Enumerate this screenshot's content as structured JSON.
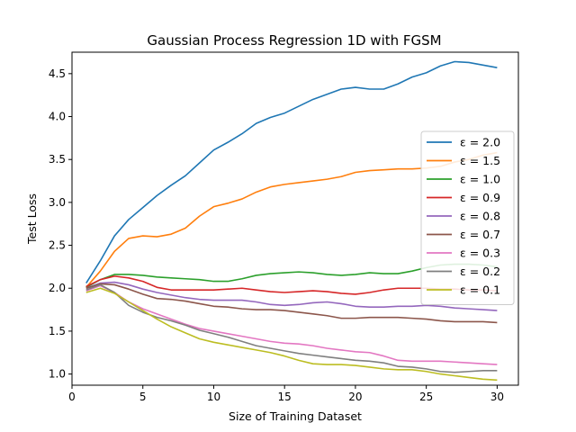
{
  "chart_data": {
    "type": "line",
    "title": "Gaussian Process Regression 1D with FGSM",
    "xlabel": "Size of Training Dataset",
    "ylabel": "Test Loss",
    "xlim": [
      0,
      31.5
    ],
    "ylim": [
      0.87,
      4.75
    ],
    "x_ticks": [
      "0",
      "5",
      "10",
      "15",
      "20",
      "25",
      "30"
    ],
    "y_ticks": [
      "1.0",
      "1.5",
      "2.0",
      "2.5",
      "3.0",
      "3.5",
      "4.0",
      "4.5"
    ],
    "grid": false,
    "legend_position": "center-right",
    "x": [
      1,
      2,
      3,
      4,
      5,
      6,
      7,
      8,
      9,
      10,
      11,
      12,
      13,
      14,
      15,
      16,
      17,
      18,
      19,
      20,
      21,
      22,
      23,
      24,
      25,
      26,
      27,
      28,
      29,
      30
    ],
    "series": [
      {
        "name": "ε = 2.0",
        "color": "#1f77b4",
        "values": [
          2.06,
          2.32,
          2.61,
          2.8,
          2.94,
          3.08,
          3.2,
          3.31,
          3.46,
          3.61,
          3.7,
          3.8,
          3.92,
          3.99,
          4.04,
          4.12,
          4.2,
          4.26,
          4.32,
          4.34,
          4.32,
          4.32,
          4.38,
          4.46,
          4.51,
          4.59,
          4.64,
          4.63,
          4.6,
          4.57
        ]
      },
      {
        "name": "ε = 1.5",
        "color": "#ff7f0e",
        "values": [
          2.01,
          2.2,
          2.43,
          2.58,
          2.61,
          2.6,
          2.63,
          2.7,
          2.84,
          2.95,
          2.99,
          3.04,
          3.12,
          3.18,
          3.21,
          3.23,
          3.25,
          3.27,
          3.3,
          3.35,
          3.37,
          3.38,
          3.39,
          3.39,
          3.4,
          3.42,
          3.47,
          3.5,
          3.55,
          3.58
        ]
      },
      {
        "name": "ε = 1.0",
        "color": "#2ca02c",
        "values": [
          2.01,
          2.1,
          2.16,
          2.16,
          2.15,
          2.13,
          2.12,
          2.11,
          2.1,
          2.08,
          2.08,
          2.11,
          2.15,
          2.17,
          2.18,
          2.19,
          2.18,
          2.16,
          2.15,
          2.16,
          2.18,
          2.17,
          2.17,
          2.2,
          2.24,
          2.27,
          2.28,
          2.28,
          2.27,
          2.25
        ]
      },
      {
        "name": "ε = 0.9",
        "color": "#d62728",
        "values": [
          2.02,
          2.1,
          2.14,
          2.12,
          2.08,
          2.01,
          1.98,
          1.98,
          1.98,
          1.98,
          1.99,
          2.0,
          1.98,
          1.96,
          1.95,
          1.96,
          1.97,
          1.96,
          1.94,
          1.93,
          1.95,
          1.98,
          2.0,
          2.0,
          2.0,
          1.99,
          1.99,
          1.98,
          1.98,
          1.97
        ]
      },
      {
        "name": "ε = 0.8",
        "color": "#9467bd",
        "values": [
          2.0,
          2.06,
          2.07,
          2.04,
          1.99,
          1.95,
          1.92,
          1.89,
          1.87,
          1.86,
          1.86,
          1.86,
          1.84,
          1.81,
          1.8,
          1.81,
          1.83,
          1.84,
          1.82,
          1.79,
          1.78,
          1.78,
          1.79,
          1.79,
          1.8,
          1.79,
          1.77,
          1.76,
          1.75,
          1.74
        ]
      },
      {
        "name": "ε = 0.7",
        "color": "#8c564b",
        "values": [
          2.0,
          2.05,
          2.04,
          1.99,
          1.93,
          1.88,
          1.87,
          1.85,
          1.82,
          1.79,
          1.78,
          1.76,
          1.75,
          1.75,
          1.74,
          1.72,
          1.7,
          1.68,
          1.65,
          1.65,
          1.66,
          1.66,
          1.66,
          1.65,
          1.64,
          1.62,
          1.61,
          1.61,
          1.61,
          1.6
        ]
      },
      {
        "name": "ε = 0.3",
        "color": "#e377c2",
        "values": [
          1.97,
          2.03,
          1.95,
          1.84,
          1.76,
          1.7,
          1.64,
          1.58,
          1.53,
          1.5,
          1.47,
          1.44,
          1.41,
          1.38,
          1.36,
          1.35,
          1.33,
          1.3,
          1.28,
          1.26,
          1.25,
          1.21,
          1.16,
          1.15,
          1.15,
          1.15,
          1.14,
          1.13,
          1.12,
          1.11
        ]
      },
      {
        "name": "ε = 0.2",
        "color": "#7f7f7f",
        "values": [
          1.98,
          2.04,
          1.95,
          1.8,
          1.72,
          1.66,
          1.62,
          1.57,
          1.51,
          1.47,
          1.43,
          1.38,
          1.33,
          1.3,
          1.27,
          1.24,
          1.22,
          1.2,
          1.18,
          1.16,
          1.15,
          1.13,
          1.09,
          1.08,
          1.06,
          1.03,
          1.02,
          1.03,
          1.04,
          1.04
        ]
      },
      {
        "name": "ε = 0.1",
        "color": "#bcbd22",
        "values": [
          1.95,
          2.0,
          1.94,
          1.84,
          1.74,
          1.64,
          1.55,
          1.48,
          1.41,
          1.37,
          1.34,
          1.31,
          1.28,
          1.25,
          1.21,
          1.16,
          1.12,
          1.11,
          1.11,
          1.1,
          1.08,
          1.06,
          1.05,
          1.05,
          1.03,
          1.0,
          0.98,
          0.96,
          0.94,
          0.93
        ]
      }
    ]
  }
}
